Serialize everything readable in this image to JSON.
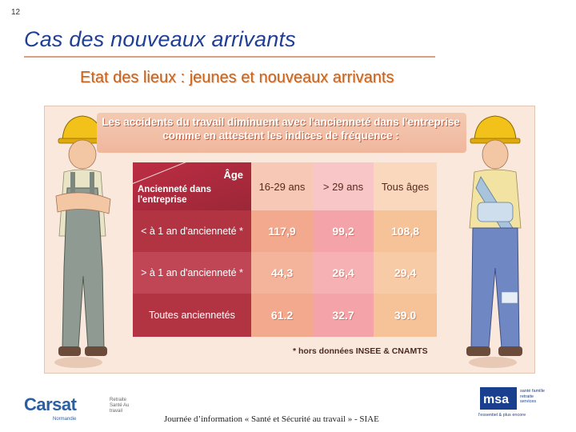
{
  "slide_number": "12",
  "title": "Cas des nouveaux arrivants",
  "subtitle": "Etat des lieux : jeunes et nouveaux arrivants",
  "banner": {
    "line1": "Les accidents du travail diminuent avec l'ancienneté dans l'entreprise",
    "line2": "comme en attestent les indices de fréquence :"
  },
  "table": {
    "corner_top": "Âge",
    "corner_bottom": "Ancienneté dans l'entreprise",
    "columns": [
      "16-29 ans",
      "> 29 ans",
      "Tous âges"
    ],
    "rows": [
      {
        "label": "< à 1 an d'ancienneté *",
        "values": [
          "117,9",
          "99,2",
          "108,8"
        ]
      },
      {
        "label": "> à 1 an d'ancienneté *",
        "values": [
          "44,3",
          "26,4",
          "29,4"
        ]
      },
      {
        "label": "Toutes anciennetés",
        "values": [
          "61.2",
          "32.7",
          "39.0"
        ]
      }
    ],
    "footnote": "* hors données INSEE & CNAMTS"
  },
  "colors": {
    "title": "#1f3f94",
    "subtitle": "#c5641f",
    "header_red": "#bd2d43",
    "col_16_29": "#f2a98d",
    "col_29": "#f4a4a8",
    "col_tous": "#f6c398"
  },
  "footer": {
    "event": "Journée d’information « Santé et Sécurité au travail » -  SIAE",
    "carsat_name": "Carsat",
    "carsat_tagline": "Retraite Santé Au travail",
    "carsat_region": "Normandie",
    "msa_tagline": "santé famille retraite services",
    "msa_slogan": "l'essentiel & plus encore"
  }
}
